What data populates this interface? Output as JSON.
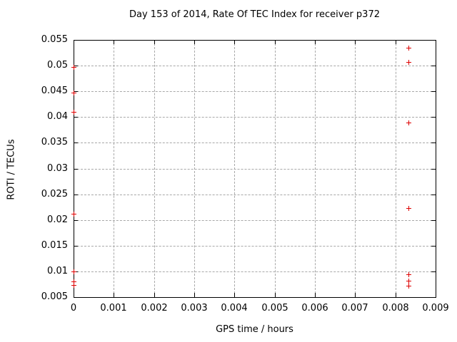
{
  "chart_data": {
    "type": "scatter",
    "title": "Day 153 of 2014, Rate Of TEC Index for receiver p372",
    "xlabel": "GPS time / hours",
    "ylabel": "ROTI / TECUs",
    "xlim": [
      0,
      0.009
    ],
    "ylim": [
      0.005,
      0.055
    ],
    "grid": true,
    "legend": "none",
    "marker": "plus",
    "colors": {
      "marker": "#dd0000",
      "grid": "#a8a8a8",
      "axis": "#000000",
      "background": "#ffffff",
      "text": "#000000"
    },
    "x_ticks": {
      "values": [
        0,
        0.001,
        0.002,
        0.003,
        0.004,
        0.005,
        0.006,
        0.007,
        0.008,
        0.009
      ],
      "labels": [
        "0",
        "0.001",
        "0.002",
        "0.003",
        "0.004",
        "0.005",
        "0.006",
        "0.007",
        "0.008",
        "0.009"
      ]
    },
    "y_ticks": {
      "values": [
        0.005,
        0.01,
        0.015,
        0.02,
        0.025,
        0.03,
        0.035,
        0.04,
        0.045,
        0.05,
        0.055
      ],
      "labels": [
        "0.005",
        "0.01",
        "0.015",
        "0.02",
        "0.025",
        "0.03",
        "0.035",
        "0.04",
        "0.045",
        "0.05",
        "0.055"
      ]
    },
    "series": [
      {
        "name": "ROTI",
        "points": [
          {
            "x": 0,
            "y": 0.0497
          },
          {
            "x": 0,
            "y": 0.0448
          },
          {
            "x": 0,
            "y": 0.041
          },
          {
            "x": 0,
            "y": 0.0212
          },
          {
            "x": 0,
            "y": 0.01
          },
          {
            "x": 0,
            "y": 0.0081
          },
          {
            "x": 0,
            "y": 0.0074
          },
          {
            "x": 0.00833,
            "y": 0.0535
          },
          {
            "x": 0.00833,
            "y": 0.0507
          },
          {
            "x": 0.00833,
            "y": 0.0389
          },
          {
            "x": 0.00833,
            "y": 0.0223
          },
          {
            "x": 0.00833,
            "y": 0.0095
          },
          {
            "x": 0.00833,
            "y": 0.0082
          },
          {
            "x": 0.00833,
            "y": 0.0072
          }
        ]
      }
    ]
  }
}
